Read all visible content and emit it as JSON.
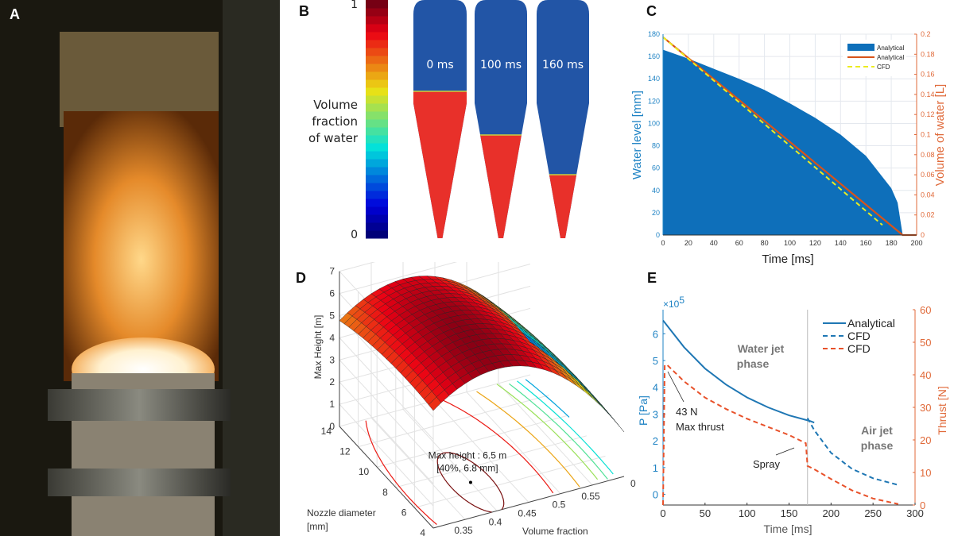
{
  "panels": {
    "a": "A",
    "b": "B",
    "c": "C",
    "d": "D",
    "e": "E"
  },
  "panel_b": {
    "colorbar_max": "1",
    "colorbar_min": "0",
    "colorbar_label": [
      "Volume",
      "fraction",
      "of water"
    ],
    "colormap": "jet",
    "snapshots": [
      "0 ms",
      "100 ms",
      "160 ms"
    ],
    "colors": {
      "air": "#2255a6",
      "water": "#e8302a"
    }
  },
  "chart_data": [
    {
      "id": "C",
      "type": "area+line",
      "xlabel": "Time [ms]",
      "ylabel": "Water level [mm]",
      "y2label": "Volume of water [L]",
      "xlim": [
        0,
        200
      ],
      "ylim": [
        0,
        180
      ],
      "y2lim": [
        0,
        0.2
      ],
      "xticks": [
        "0",
        "20",
        "40",
        "60",
        "80",
        "100",
        "120",
        "140",
        "160",
        "180",
        "200"
      ],
      "yticks": [
        "0",
        "20",
        "40",
        "60",
        "80",
        "100",
        "120",
        "140",
        "160",
        "180"
      ],
      "y2ticks": [
        "0",
        "0.02",
        "0.04",
        "0.06",
        "0.08",
        "0.1",
        "0.12",
        "0.14",
        "0.16",
        "0.18",
        "0.2"
      ],
      "grid": true,
      "legend": "top-right",
      "series": [
        {
          "name": "Analytical",
          "axis": "left",
          "style": "area",
          "color": "#0e6fba",
          "x": [
            0,
            20,
            40,
            60,
            80,
            100,
            120,
            140,
            160,
            180,
            185,
            189,
            200
          ],
          "y": [
            166,
            158,
            149,
            140,
            130,
            118,
            105,
            90,
            71,
            42,
            29,
            0,
            0
          ]
        },
        {
          "name": "Analytical",
          "axis": "right",
          "style": "solid",
          "color": "#d95319",
          "x": [
            0,
            189,
            200
          ],
          "y": [
            0.197,
            0,
            0
          ]
        },
        {
          "name": "CFD",
          "axis": "right",
          "style": "dashed",
          "color": "#ecec1e",
          "x": [
            0,
            173
          ],
          "y": [
            0.197,
            0.01
          ]
        }
      ]
    },
    {
      "id": "D",
      "type": "surface",
      "xlabel": "Volume fraction",
      "ylabel": "Nozzle diameter [mm]",
      "ylabel_lines": [
        "Nozzle diameter",
        "[mm]"
      ],
      "zlabel": "Max Height [m]",
      "xticks": [
        "0.35",
        "0.4",
        "0.45",
        "0.5",
        "0.55"
      ],
      "yticks": [
        "4",
        "6",
        "8",
        "10",
        "12",
        "14"
      ],
      "zticks": [
        "0",
        "1",
        "2",
        "3",
        "4",
        "5",
        "6",
        "7"
      ],
      "extra_tick": "0",
      "xlim": [
        0.3,
        0.6
      ],
      "ylim": [
        4,
        14
      ],
      "zlim": [
        0,
        7
      ],
      "optimum": {
        "volume_fraction": 0.4,
        "nozzle_diameter": 6.8,
        "max_height": 6.5
      },
      "annotation": [
        "Max height : 6.5 m",
        "[40%, 6.8 mm]"
      ],
      "colormap": "jet"
    },
    {
      "id": "E",
      "type": "line",
      "xlabel": "Time [ms]",
      "ylabel": "P [Pa]",
      "y2label": "Thrust [N]",
      "y_multiplier": {
        "base": "×10",
        "exp": "5"
      },
      "xlim": [
        0,
        300
      ],
      "ylim": [
        -0.4,
        6.9
      ],
      "y2lim": [
        0,
        60
      ],
      "xticks": [
        "0",
        "50",
        "100",
        "150",
        "200",
        "250",
        "300"
      ],
      "yticks": [
        "0",
        "1",
        "2",
        "3",
        "4",
        "5",
        "6"
      ],
      "y2ticks": [
        "0",
        "10",
        "20",
        "30",
        "40",
        "50",
        "60"
      ],
      "legend": "top-right",
      "phase_boundary_ms": 172,
      "annotations": {
        "max_thrust": [
          "43 N",
          "Max thrust"
        ],
        "spray": "Spray",
        "water_phase": [
          "Water jet",
          "phase"
        ],
        "air_phase": [
          "Air jet",
          "phase"
        ]
      },
      "series": [
        {
          "name": "Analytical",
          "axis": "left",
          "style": "solid",
          "color": "#1f77b4",
          "x": [
            0,
            25,
            50,
            75,
            100,
            125,
            150,
            175,
            180
          ],
          "y": [
            6.5,
            5.5,
            4.7,
            4.1,
            3.62,
            3.25,
            2.95,
            2.74,
            2.68
          ]
        },
        {
          "name": "CFD",
          "axis": "left",
          "style": "dashed",
          "color": "#1f77b4",
          "x": [
            172,
            180,
            200,
            225,
            250,
            280
          ],
          "y": [
            2.85,
            2.4,
            1.55,
            0.95,
            0.6,
            0.35
          ]
        },
        {
          "name": "CFD",
          "axis": "right",
          "style": "dashed",
          "color": "#e8512a",
          "x": [
            0,
            2,
            5,
            25,
            50,
            75,
            100,
            125,
            150,
            170,
            172,
            180,
            200,
            225,
            250,
            280
          ],
          "y": [
            0,
            43,
            43,
            38,
            33,
            29.5,
            26.5,
            24,
            21.5,
            19,
            12,
            11,
            8,
            4.5,
            2,
            0.3
          ]
        }
      ]
    }
  ]
}
